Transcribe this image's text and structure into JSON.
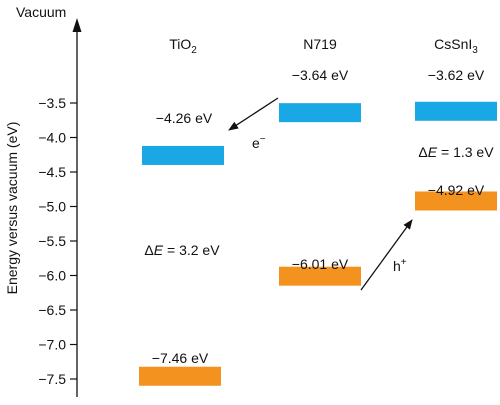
{
  "axis": {
    "top_label": "Vacuum",
    "ylabel": "Energy versus vacuum (eV)",
    "ticks": [
      "-3.5",
      "-4.0",
      "-4.5",
      "-5.0",
      "-5.5",
      "-6.0",
      "-6.5",
      "-7.0",
      "-7.5"
    ]
  },
  "materials": {
    "tio2": {
      "name": "TiO",
      "sub": "2"
    },
    "n719": {
      "name": "N719"
    },
    "cssni3": {
      "name": "CsSnI",
      "sub": "3"
    }
  },
  "levels": {
    "tio2_cb": {
      "label": "−4.26 eV",
      "value": -4.26
    },
    "tio2_vb": {
      "label": "−7.46 eV",
      "value": -7.46
    },
    "n719_lumo": {
      "label": "−3.64 eV",
      "value": -3.64
    },
    "n719_homo": {
      "label": "−6.01 eV",
      "value": -6.01
    },
    "cssni3_cb": {
      "label": "−3.62 eV",
      "value": -3.62
    },
    "cssni3_vb": {
      "label": "−4.92 eV",
      "value": -4.92
    }
  },
  "gaps": {
    "tio2": {
      "symbol": "Δ",
      "var": "E",
      "rest": " = 3.2 eV"
    },
    "cssni3": {
      "symbol": "Δ",
      "var": "E",
      "rest": " = 1.3 eV"
    }
  },
  "carriers": {
    "electron": {
      "base": "e",
      "sup": "−"
    },
    "hole": {
      "base": "h",
      "sup": "+"
    }
  },
  "colors": {
    "conduction_band": "#1aa7e6",
    "valence_band": "#f3921e",
    "text": "#111111"
  }
}
